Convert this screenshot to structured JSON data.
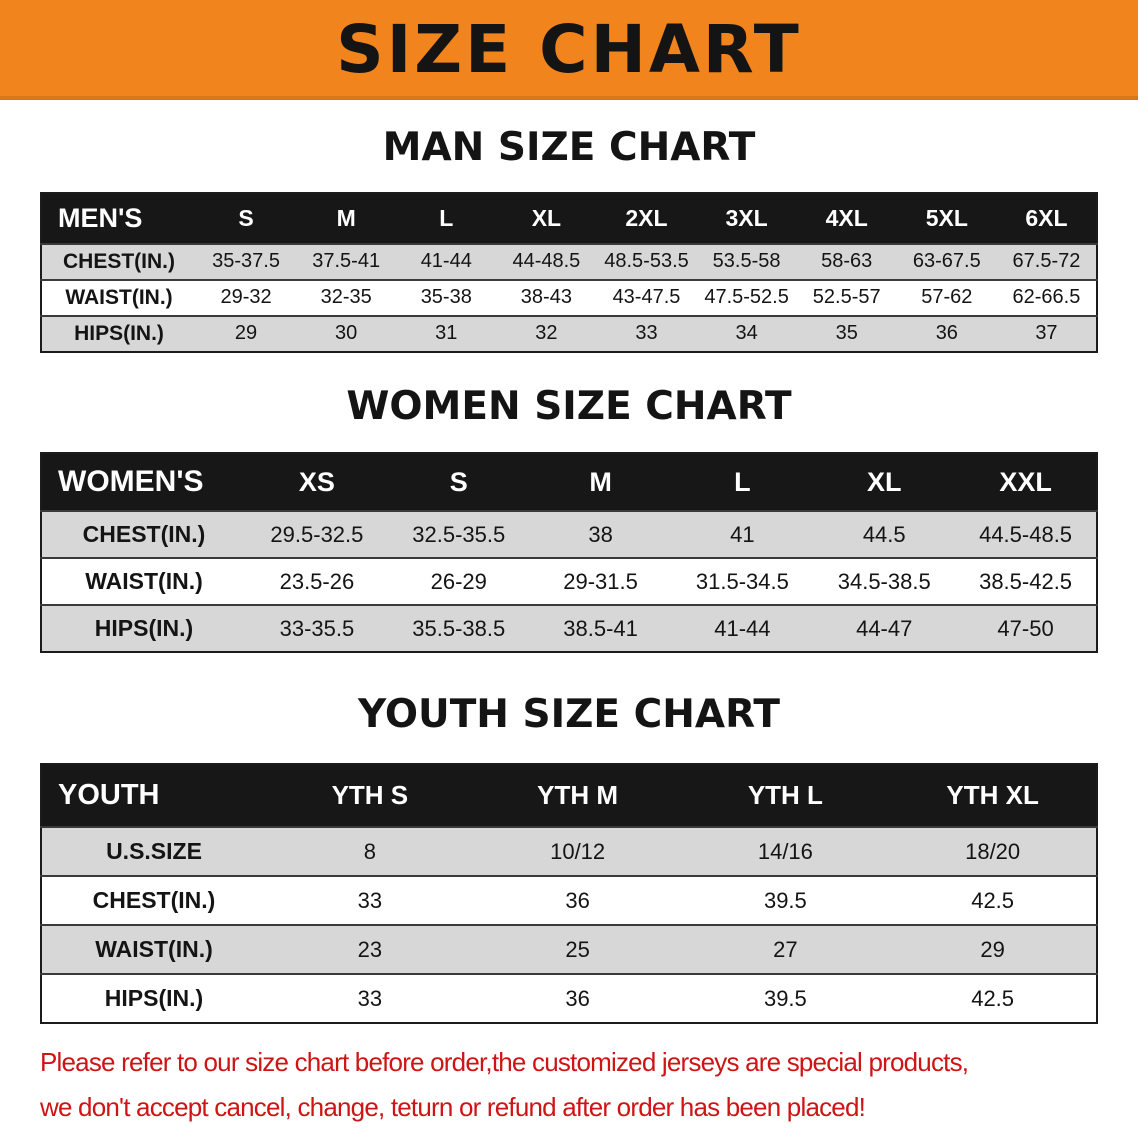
{
  "banner": {
    "title": "SIZE CHART"
  },
  "colors": {
    "banner_orange": "#f1841c",
    "table_header_black": "#171717",
    "row_gray": "#d7d7d7",
    "disclaimer_red": "#ce1414"
  },
  "chart_data": [
    {
      "type": "table",
      "title": "MAN SIZE CHART",
      "columns": [
        "MEN'S",
        "S",
        "M",
        "L",
        "XL",
        "2XL",
        "3XL",
        "4XL",
        "5XL",
        "6XL"
      ],
      "rows": [
        [
          "CHEST(IN.)",
          "35-37.5",
          "37.5-41",
          "41-44",
          "44-48.5",
          "48.5-53.5",
          "53.5-58",
          "58-63",
          "63-67.5",
          "67.5-72"
        ],
        [
          "WAIST(IN.)",
          "29-32",
          "32-35",
          "35-38",
          "38-43",
          "43-47.5",
          "47.5-52.5",
          "52.5-57",
          "57-62",
          "62-66.5"
        ],
        [
          "HIPS(IN.)",
          "29",
          "30",
          "31",
          "32",
          "33",
          "34",
          "35",
          "36",
          "37"
        ]
      ]
    },
    {
      "type": "table",
      "title": "WOMEN SIZE CHART",
      "columns": [
        "WOMEN'S",
        "XS",
        "S",
        "M",
        "L",
        "XL",
        "XXL"
      ],
      "rows": [
        [
          "CHEST(IN.)",
          "29.5-32.5",
          "32.5-35.5",
          "38",
          "41",
          "44.5",
          "44.5-48.5"
        ],
        [
          "WAIST(IN.)",
          "23.5-26",
          "26-29",
          "29-31.5",
          "31.5-34.5",
          "34.5-38.5",
          "38.5-42.5"
        ],
        [
          "HIPS(IN.)",
          "33-35.5",
          "35.5-38.5",
          "38.5-41",
          "41-44",
          "44-47",
          "47-50"
        ]
      ]
    },
    {
      "type": "table",
      "title": "YOUTH SIZE CHART",
      "columns": [
        "YOUTH",
        "YTH S",
        "YTH M",
        "YTH L",
        "YTH XL"
      ],
      "rows": [
        [
          "U.S.SIZE",
          "8",
          "10/12",
          "14/16",
          "18/20"
        ],
        [
          "CHEST(IN.)",
          "33",
          "36",
          "39.5",
          "42.5"
        ],
        [
          "WAIST(IN.)",
          "23",
          "25",
          "27",
          "29"
        ],
        [
          "HIPS(IN.)",
          "33",
          "36",
          "39.5",
          "42.5"
        ]
      ]
    }
  ],
  "disclaimer": {
    "line1": "Please refer to our size chart before order,the customized jerseys are special products,",
    "line2": "we don't accept cancel, change, teturn or refund after order has been placed!"
  }
}
